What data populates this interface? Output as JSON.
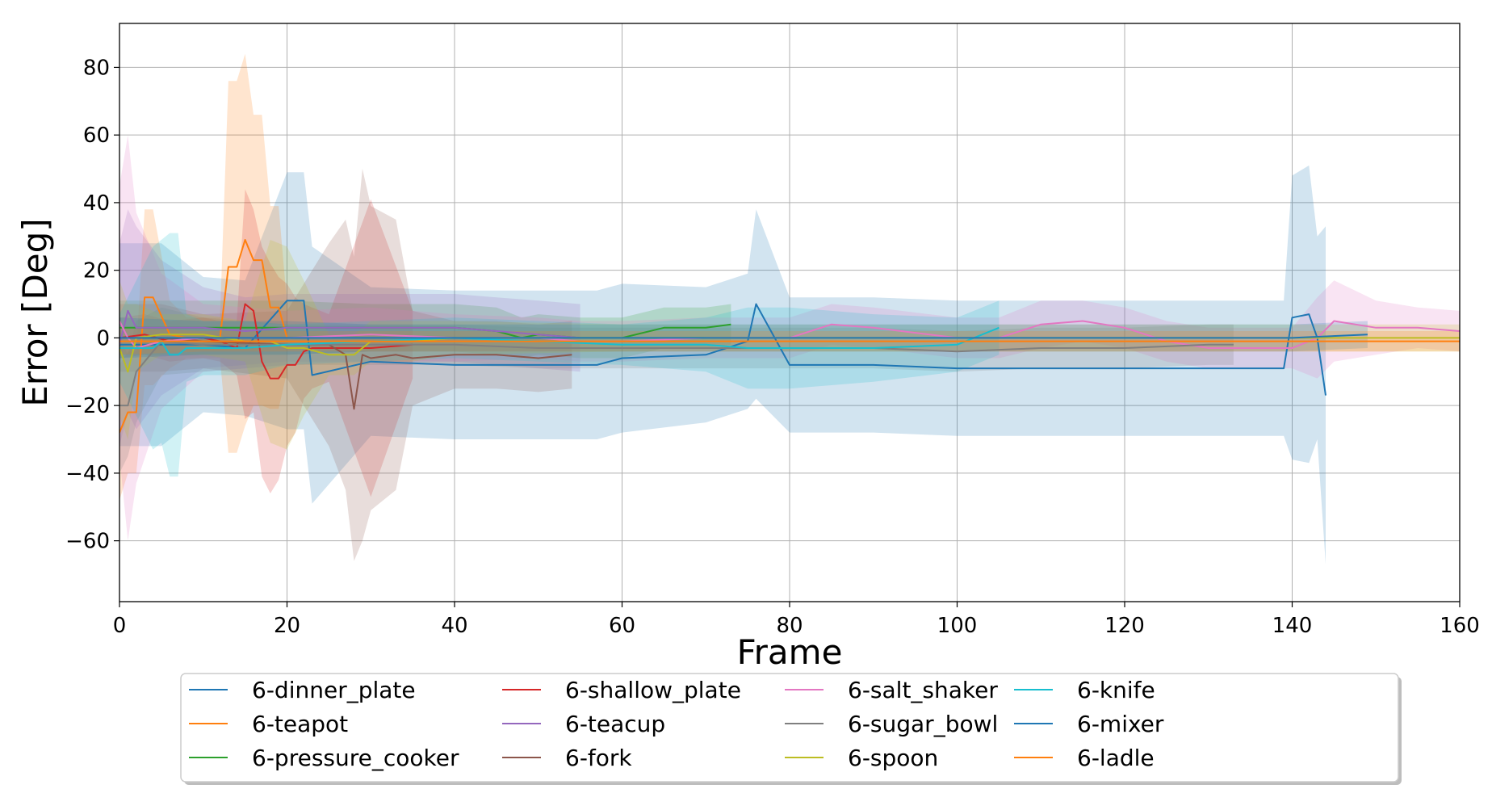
{
  "chart_data": {
    "type": "line",
    "xlabel": "Frame",
    "ylabel": "Error [Deg]",
    "xlim": [
      0,
      160
    ],
    "ylim": [
      -78,
      93
    ],
    "xticks": [
      0,
      20,
      40,
      60,
      80,
      100,
      120,
      140,
      160
    ],
    "yticks": [
      -60,
      -40,
      -20,
      0,
      20,
      40,
      60,
      80
    ],
    "grid": true,
    "legend_position": "bottom-center",
    "legend_columns": 5,
    "band_style": "mean line with shaded ± spread band",
    "series": [
      {
        "name": "6-dinner_plate",
        "color": "#1f77b4",
        "x": [
          0,
          5,
          10,
          15,
          20,
          22,
          23,
          30,
          40,
          50,
          57,
          60,
          70,
          75,
          76,
          80,
          90,
          100,
          110,
          120,
          130,
          139,
          140,
          142,
          143,
          144
        ],
        "y": [
          -2,
          -2,
          -2,
          -3,
          11,
          11,
          -11,
          -7,
          -8,
          -8,
          -8,
          -6,
          -5,
          -1,
          10,
          -8,
          -8,
          -9,
          -9,
          -9,
          -9,
          -9,
          6,
          7,
          0,
          -17
        ],
        "band": [
          30,
          30,
          20,
          20,
          38,
          38,
          38,
          22,
          22,
          22,
          22,
          22,
          20,
          20,
          28,
          20,
          20,
          20,
          20,
          20,
          20,
          20,
          42,
          44,
          30,
          50
        ]
      },
      {
        "name": "6-teapot",
        "color": "#ff7f0e",
        "x": [
          0,
          1,
          2,
          3,
          4,
          6,
          8,
          12,
          13,
          14,
          15,
          16,
          17,
          18,
          19,
          20
        ],
        "y": [
          -28,
          -22,
          -22,
          12,
          12,
          1,
          0,
          0,
          21,
          21,
          29,
          23,
          23,
          9,
          9,
          0
        ],
        "band": [
          20,
          18,
          18,
          26,
          26,
          10,
          6,
          6,
          55,
          55,
          55,
          43,
          43,
          30,
          30,
          10
        ]
      },
      {
        "name": "6-pressure_cooker",
        "color": "#2ca02c",
        "x": [
          0,
          10,
          20,
          30,
          40,
          45,
          48,
          50,
          55,
          60,
          65,
          70,
          73
        ],
        "y": [
          3,
          3,
          3,
          3,
          3,
          2,
          0,
          1,
          0,
          0,
          3,
          3,
          4
        ],
        "band": [
          8,
          8,
          8,
          7,
          7,
          7,
          6,
          6,
          6,
          6,
          6,
          6,
          6
        ]
      },
      {
        "name": "6-shallow_plate",
        "color": "#d62728",
        "x": [
          0,
          3,
          6,
          10,
          12,
          14,
          15,
          16,
          17,
          18,
          19,
          20,
          21,
          22,
          23,
          25,
          30,
          35
        ],
        "y": [
          0,
          1,
          -1,
          0,
          -1,
          -3,
          10,
          8,
          -7,
          -12,
          -12,
          -8,
          -8,
          -4,
          -3,
          -3,
          -3,
          -2
        ],
        "band": [
          6,
          6,
          6,
          6,
          6,
          8,
          34,
          30,
          34,
          34,
          30,
          24,
          20,
          14,
          12,
          10,
          44,
          10
        ]
      },
      {
        "name": "6-teacup",
        "color": "#9467bd",
        "x": [
          0,
          1,
          2,
          5,
          10,
          15,
          20,
          30,
          40,
          45,
          50,
          55
        ],
        "y": [
          -2,
          8,
          3,
          3,
          3,
          2,
          3,
          3,
          3,
          2,
          1,
          0
        ],
        "band": [
          30,
          30,
          30,
          20,
          12,
          10,
          10,
          10,
          10,
          10,
          10,
          10
        ]
      },
      {
        "name": "6-fork",
        "color": "#8c564b",
        "x": [
          0,
          5,
          10,
          20,
          25,
          27,
          28,
          29,
          30,
          33,
          35,
          40,
          45,
          50,
          54
        ],
        "y": [
          0,
          0,
          -1,
          -2,
          -2,
          -5,
          -21,
          -5,
          -6,
          -5,
          -6,
          -5,
          -5,
          -6,
          -5
        ],
        "band": [
          10,
          10,
          8,
          10,
          30,
          40,
          45,
          55,
          45,
          40,
          14,
          10,
          10,
          10,
          10
        ]
      },
      {
        "name": "6-salt_shaker",
        "color": "#e377c2",
        "x": [
          0,
          1,
          2,
          5,
          10,
          20,
          30,
          40,
          50,
          55,
          60,
          70,
          80,
          85,
          90,
          100,
          105,
          110,
          115,
          120,
          125,
          130,
          140,
          143,
          145,
          150,
          155,
          160
        ],
        "y": [
          5,
          0,
          -3,
          -1,
          0,
          0,
          1,
          0,
          0,
          -1,
          -1,
          0,
          0,
          4,
          3,
          0,
          0,
          4,
          5,
          3,
          -1,
          -3,
          -3,
          0,
          5,
          3,
          3,
          2
        ],
        "band": [
          40,
          60,
          40,
          20,
          10,
          8,
          8,
          7,
          6,
          6,
          6,
          6,
          6,
          6,
          6,
          6,
          6,
          7,
          6,
          6,
          6,
          6,
          6,
          12,
          12,
          8,
          6,
          6
        ]
      },
      {
        "name": "6-sugar_bowl",
        "color": "#7f7f7f",
        "x": [
          0,
          1,
          2,
          5,
          10,
          20,
          30,
          40,
          50,
          60,
          70,
          80,
          90,
          100,
          110,
          120,
          130,
          133
        ],
        "y": [
          -20,
          -20,
          -10,
          -1,
          -2,
          -2,
          -2,
          -2,
          -3,
          -3,
          -3,
          -3,
          -3,
          -4,
          -3,
          -3,
          -2,
          -2
        ],
        "band": [
          20,
          15,
          15,
          10,
          8,
          6,
          6,
          6,
          6,
          6,
          6,
          6,
          6,
          6,
          6,
          6,
          6,
          6
        ]
      },
      {
        "name": "6-spoon",
        "color": "#bcbd22",
        "x": [
          0,
          1,
          2,
          5,
          10,
          15,
          18,
          20,
          22,
          25,
          28,
          30,
          35,
          40,
          60,
          80,
          100,
          120,
          140,
          160
        ],
        "y": [
          -3,
          -10,
          0,
          1,
          1,
          -1,
          -1,
          -3,
          -3,
          -5,
          -5,
          -1,
          -1,
          0,
          0,
          0,
          0,
          0,
          0,
          0
        ],
        "band": [
          20,
          20,
          10,
          6,
          6,
          6,
          30,
          30,
          20,
          6,
          6,
          6,
          6,
          5,
          4,
          4,
          4,
          4,
          4,
          4
        ]
      },
      {
        "name": "6-knife",
        "color": "#17becf",
        "x": [
          0,
          2,
          4,
          5,
          6,
          7,
          8,
          10,
          15,
          20,
          30,
          40,
          50,
          60,
          70,
          75,
          80,
          90,
          100,
          105
        ],
        "y": [
          -3,
          -3,
          -3,
          -1,
          -5,
          -5,
          -3,
          -3,
          -3,
          -2,
          -1,
          0,
          -1,
          -2,
          -2,
          -3,
          -3,
          -3,
          -2,
          3
        ],
        "band": [
          10,
          20,
          30,
          30,
          36,
          36,
          10,
          8,
          8,
          6,
          6,
          6,
          6,
          6,
          8,
          12,
          12,
          10,
          8,
          8
        ]
      },
      {
        "name": "6-mixer",
        "color": "#1f77b4",
        "x": [
          0,
          10,
          20,
          30,
          40,
          50,
          60,
          70,
          80,
          90,
          100,
          110,
          120,
          130,
          140,
          149
        ],
        "y": [
          0,
          0,
          0,
          0,
          0,
          0,
          0,
          0,
          0,
          0,
          0,
          0,
          0,
          0,
          0,
          1
        ],
        "band": [
          6,
          5,
          5,
          4,
          4,
          4,
          4,
          4,
          4,
          4,
          4,
          4,
          4,
          4,
          4,
          4
        ]
      },
      {
        "name": "6-ladle",
        "color": "#ff7f0e",
        "x": [
          0,
          10,
          20,
          30,
          40,
          50,
          60,
          70,
          80,
          90,
          100,
          110,
          120,
          130,
          140,
          150,
          160
        ],
        "y": [
          -1,
          -1,
          -1,
          -1,
          -1,
          -1,
          -1,
          -1,
          -1,
          -1,
          -1,
          -1,
          -1,
          -1,
          -1,
          -1,
          -1
        ],
        "band": [
          4,
          3,
          3,
          3,
          3,
          3,
          3,
          3,
          3,
          3,
          3,
          3,
          3,
          3,
          3,
          3,
          3
        ]
      }
    ]
  }
}
